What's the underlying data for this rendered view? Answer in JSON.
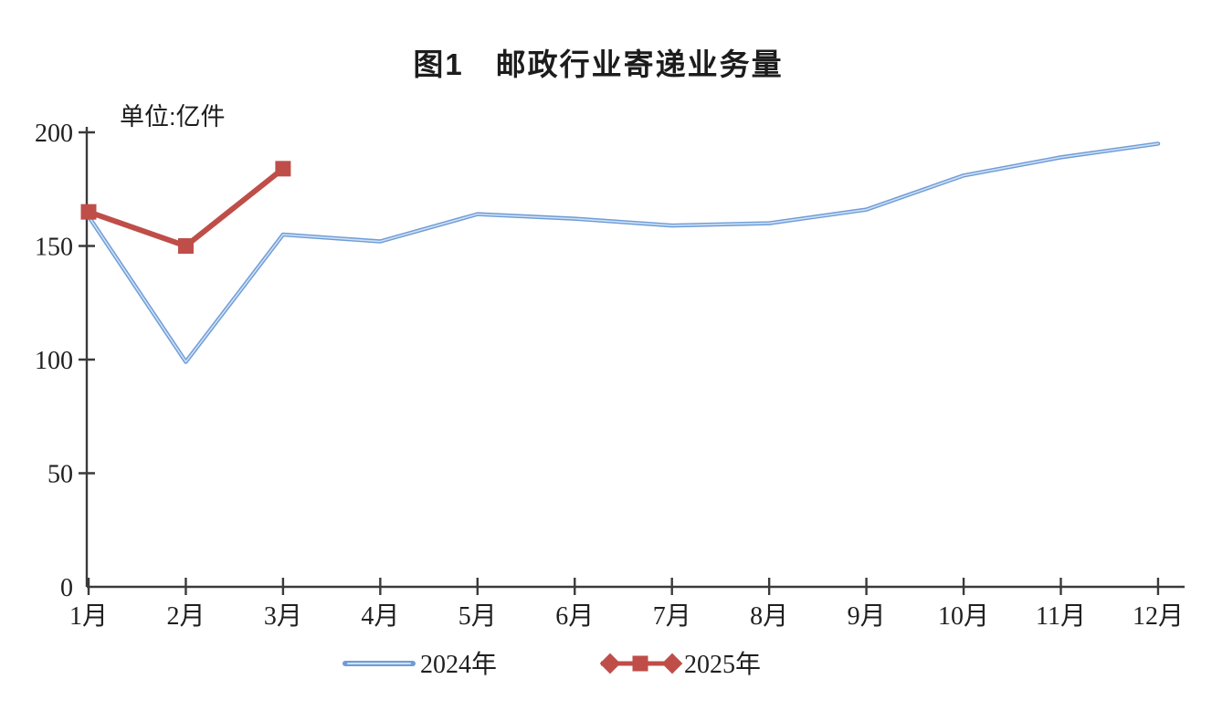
{
  "chart_data": {
    "type": "line",
    "title": "图1　邮政行业寄递业务量",
    "unit_label": "单位:亿件",
    "categories": [
      "1月",
      "2月",
      "3月",
      "4月",
      "5月",
      "6月",
      "7月",
      "8月",
      "9月",
      "10月",
      "11月",
      "12月"
    ],
    "series": [
      {
        "name": "2024年",
        "color": "#6f9cd6",
        "sheen_color": "#cde0f6",
        "marker": "none",
        "line_width": 4.5,
        "values": [
          163,
          99,
          155,
          152,
          164,
          162,
          159,
          160,
          166,
          181,
          189,
          195
        ]
      },
      {
        "name": "2025年",
        "color": "#bf4e49",
        "marker": "square",
        "marker_size": 17,
        "line_width": 6,
        "values": [
          165,
          150,
          184
        ]
      }
    ],
    "ylim": [
      0,
      200
    ],
    "yticks": [
      0,
      50,
      100,
      150,
      200
    ],
    "grid": false,
    "legend_position": "bottom",
    "axis_color": "#3a3a3a",
    "text_color": "#1f1f1f"
  }
}
